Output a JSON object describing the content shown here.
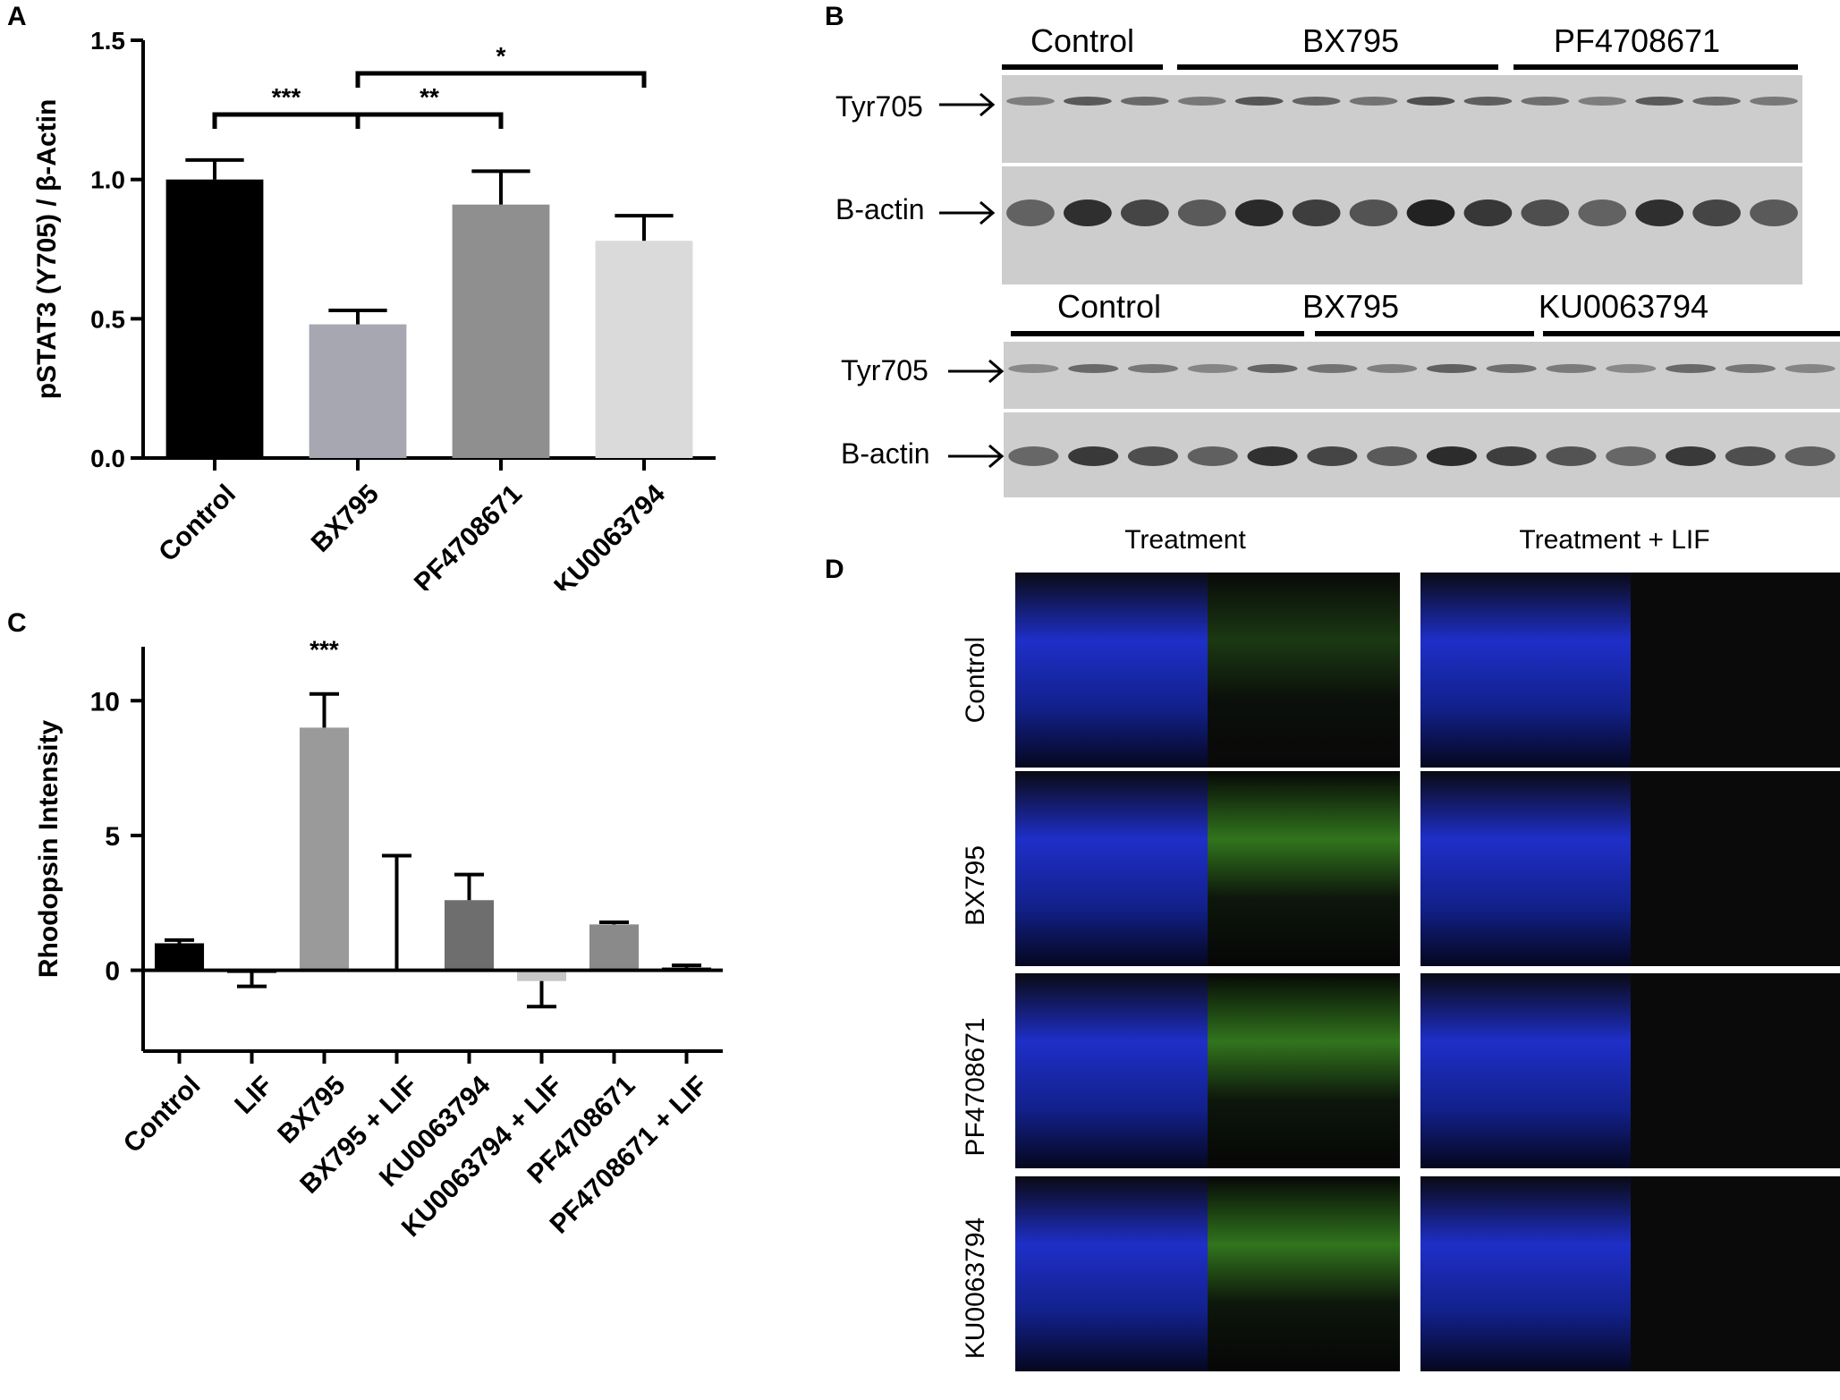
{
  "panels": {
    "a": "A",
    "b": "B",
    "c": "C",
    "d": "D"
  },
  "chart_data": [
    {
      "type": "bar",
      "panel": "A",
      "ylabel": "pSTAT3 (Y705) / β-Actin",
      "categories": [
        "Control",
        "BX795",
        "PF4708671",
        "KU0063794"
      ],
      "values": [
        1.0,
        0.48,
        0.91,
        0.78
      ],
      "errors": [
        0.07,
        0.05,
        0.12,
        0.09
      ],
      "colors": [
        "#000000",
        "#a7a7b2",
        "#8f8f8f",
        "#dadada"
      ],
      "ylim": [
        0.0,
        1.5
      ],
      "yticks": [
        "0.0",
        "0.5",
        "1.0",
        "1.5"
      ],
      "ytick_values": [
        0.0,
        0.5,
        1.0,
        1.5
      ],
      "significance": [
        {
          "from": 0,
          "to": 1,
          "label": "***"
        },
        {
          "from": 1,
          "to": 2,
          "label": "**"
        },
        {
          "from": 1,
          "to": 3,
          "label": "*"
        }
      ]
    },
    {
      "type": "bar",
      "panel": "C",
      "ylabel": "Rhodopsin Intensity",
      "categories": [
        "Control",
        "LIF",
        "BX795",
        "BX795 + LIF",
        "KU0063794",
        "KU0063794 + LIF",
        "PF4708671",
        "PF4708671 + LIF"
      ],
      "values": [
        1.0,
        -0.05,
        9.0,
        0.05,
        2.6,
        -0.4,
        1.7,
        0.1
      ],
      "errors": [
        0.12,
        0.55,
        1.25,
        4.2,
        0.95,
        0.95,
        0.08,
        0.08
      ],
      "colors": [
        "#000000",
        "#000000",
        "#9a9a9a",
        "#bcbcbc",
        "#6e6e6e",
        "#c7c7c7",
        "#8a8a8a",
        "#000000"
      ],
      "ylim": [
        -3,
        12
      ],
      "yticks": [
        "0",
        "5",
        "10"
      ],
      "ytick_values": [
        0,
        5,
        10
      ],
      "annotation": "***",
      "annotation_category": 2
    }
  ],
  "blots": {
    "top": {
      "groups": [
        "Control",
        "BX795",
        "PF4708671"
      ],
      "rows": [
        "Tyr705",
        "B-actin"
      ]
    },
    "bottom": {
      "groups": [
        "Control",
        "BX795",
        "KU0063794"
      ],
      "rows": [
        "Tyr705",
        "B-actin"
      ]
    }
  },
  "microscopy": {
    "columns": [
      "Treatment",
      "Treatment + LIF"
    ],
    "rows": [
      "Control",
      "BX795",
      "PF4708671",
      "KU0063794"
    ]
  }
}
